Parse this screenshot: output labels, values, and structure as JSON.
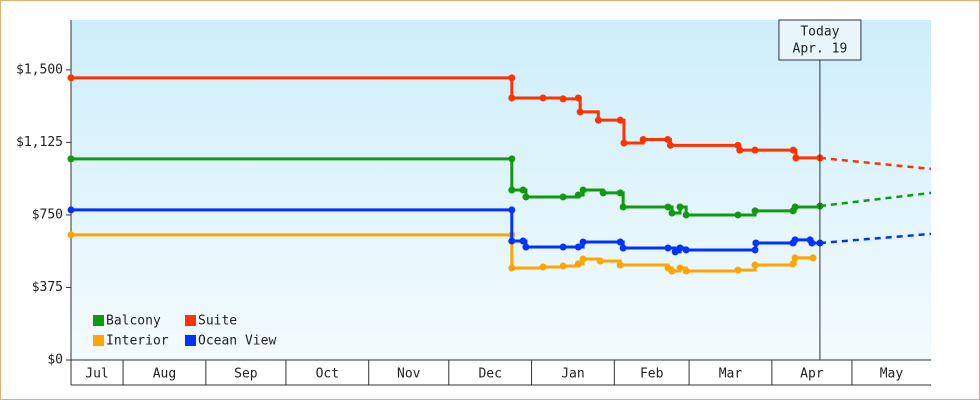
{
  "chart_data": {
    "type": "line",
    "step": true,
    "xlim": [
      11.5,
      333.6
    ],
    "xticks": [
      {
        "value": 0,
        "label": "Jul"
      },
      {
        "value": 31,
        "label": "Aug"
      },
      {
        "value": 62,
        "label": "Sep"
      },
      {
        "value": 92,
        "label": "Oct"
      },
      {
        "value": 123,
        "label": "Nov"
      },
      {
        "value": 153,
        "label": "Dec"
      },
      {
        "value": 184,
        "label": "Jan"
      },
      {
        "value": 215,
        "label": "Feb"
      },
      {
        "value": 243,
        "label": "Mar"
      },
      {
        "value": 274,
        "label": "Apr"
      },
      {
        "value": 304,
        "label": "May"
      }
    ],
    "ylim": [
      0,
      1758
    ],
    "yticks": [
      {
        "value": 0,
        "label": "$0"
      },
      {
        "value": 375,
        "label": "$375"
      },
      {
        "value": 750,
        "label": "$750"
      },
      {
        "value": 1125,
        "label": "$1,125"
      },
      {
        "value": 1500,
        "label": "$1,500"
      }
    ],
    "annotation": {
      "x": 292,
      "lines": [
        "Today",
        "Apr. 19"
      ]
    },
    "legend": "bottom-left",
    "series": [
      {
        "name": "Balcony",
        "color": "#119911",
        "x": [
          11.5,
          176.6,
          176.6,
          180.8,
          181.9,
          195.8,
          201.5,
          203.3,
          210.8,
          217.2,
          218.3,
          235.1,
          236.6,
          239.6,
          241.9,
          261.3,
          267.7,
          281.9,
          282.7,
          292
        ],
        "values": [
          1040,
          1040,
          879,
          879,
          843,
          843,
          853,
          879,
          864,
          864,
          791,
          791,
          760,
          791,
          750,
          750,
          771,
          771,
          791,
          796
        ],
        "forecast": {
          "x": [
            292,
            333.6
          ],
          "values": [
            796,
            864
          ]
        }
      },
      {
        "name": "Suite",
        "color": "#ff3300",
        "x": [
          11.5,
          176.6,
          176.6,
          188.3,
          195.8,
          201.5,
          202.2,
          209,
          217.2,
          218.6,
          225.8,
          235,
          236,
          261.3,
          262,
          267.7,
          282,
          283,
          292
        ],
        "values": [
          1459,
          1459,
          1355,
          1355,
          1350,
          1355,
          1283,
          1240,
          1240,
          1122,
          1140,
          1140,
          1110,
          1110,
          1085,
          1085,
          1085,
          1045,
          1045
        ],
        "forecast": {
          "x": [
            292,
            333.6
          ],
          "values": [
            1045,
            988
          ]
        }
      },
      {
        "name": "Interior",
        "color": "#ffa500",
        "x": [
          11.5,
          176.6,
          176.6,
          188.3,
          195.8,
          201.5,
          203.3,
          209.7,
          217.2,
          235.1,
          236.6,
          239.6,
          241.9,
          261.3,
          267.7,
          281.9,
          282.7,
          289.4
        ],
        "values": [
          647,
          647,
          476,
          481,
          486,
          497,
          522,
          512,
          491,
          476,
          460,
          476,
          460,
          465,
          491,
          497,
          528,
          528
        ]
      },
      {
        "name": "Ocean View",
        "color": "#0033ff",
        "x": [
          11.5,
          176.6,
          176.6,
          180.8,
          181.9,
          195.8,
          201.5,
          203.3,
          217.2,
          218.3,
          235.1,
          237.8,
          239.6,
          241.9,
          267.7,
          268,
          281.9,
          282.7,
          288.3,
          289,
          292
        ],
        "values": [
          776,
          776,
          615,
          615,
          584,
          584,
          584,
          610,
          610,
          579,
          579,
          559,
          579,
          569,
          569,
          605,
          605,
          621,
          621,
          605,
          605
        ],
        "forecast": {
          "x": [
            292,
            333.6
          ],
          "values": [
            605,
            652
          ]
        }
      }
    ]
  }
}
